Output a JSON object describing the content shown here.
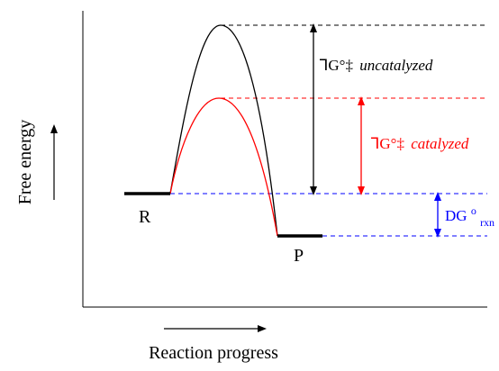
{
  "axes": {
    "y_label": "Free energy",
    "x_label": "Reaction progress"
  },
  "states": {
    "reactant": "R",
    "product": "P"
  },
  "annotations": {
    "uncatalyzed": {
      "symbol": "ᒣG°‡",
      "text": "uncatalyzed",
      "color": "#000000"
    },
    "catalyzed": {
      "symbol": "ᒣG°‡",
      "text": "catalyzed",
      "color": "#ff0000"
    },
    "reaction": {
      "symbol": "DG",
      "superscript": "o",
      "subscript": "rxn",
      "color": "#0000ff"
    }
  },
  "colors": {
    "uncatalyzed_curve": "#000000",
    "catalyzed_curve": "#ff0000",
    "baseline_dashes": "#0000ff"
  }
}
